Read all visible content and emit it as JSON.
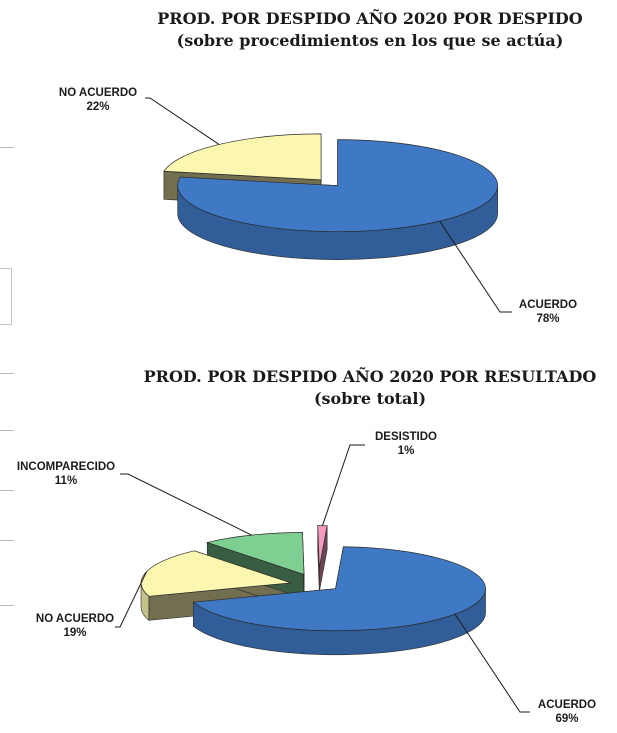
{
  "chart_data": [
    {
      "type": "pie",
      "title": "PROD. POR DESPIDO AÑO 2020 POR DESPIDO",
      "subtitle": "(sobre procedimientos en los que se actúa)",
      "slices": [
        {
          "label": "ACUERDO",
          "value": 78,
          "value_text": "78%",
          "color": "#3f78c4"
        },
        {
          "label": "NO ACUERDO",
          "value": 22,
          "value_text": "22%",
          "color": "#fbf7b0"
        }
      ]
    },
    {
      "type": "pie",
      "title": "PROD. POR DESPIDO AÑO 2020 POR RESULTADO",
      "subtitle": "(sobre total)",
      "slices": [
        {
          "label": "ACUERDO",
          "value": 69,
          "value_text": "69%",
          "color": "#3f78c4"
        },
        {
          "label": "NO ACUERDO",
          "value": 19,
          "value_text": "19%",
          "color": "#fbf7b0"
        },
        {
          "label": "INCOMPARECIDO",
          "value": 11,
          "value_text": "11%",
          "color": "#7fcf93"
        },
        {
          "label": "DESISTIDO",
          "value": 1,
          "value_text": "1%",
          "color": "#f49ac0"
        }
      ]
    }
  ]
}
